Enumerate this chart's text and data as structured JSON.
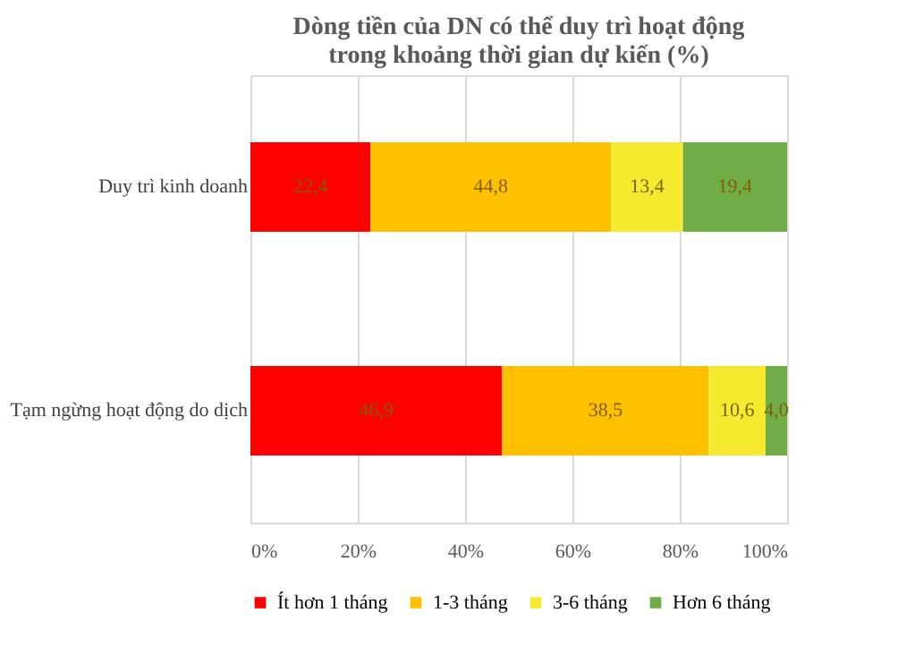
{
  "chart_data": {
    "type": "bar",
    "orientation": "horizontal",
    "stacked": true,
    "title": "Dòng tiền của DN có thể duy trì hoạt động\ntrong khoảng thời gian dự kiến (%)",
    "categories": [
      "Duy trì kinh doanh",
      "Tạm ngừng hoạt động do dịch"
    ],
    "series": [
      {
        "name": "Ít hơn 1 tháng",
        "color": "#ff0000",
        "values": [
          22.4,
          46.9
        ],
        "value_labels": [
          "22,4",
          "46,9"
        ]
      },
      {
        "name": "1-3 tháng",
        "color": "#ffc000",
        "values": [
          44.8,
          38.5
        ],
        "value_labels": [
          "44,8",
          "38,5"
        ]
      },
      {
        "name": "3-6 tháng",
        "color": "#f5ea2e",
        "values": [
          13.4,
          10.6
        ],
        "value_labels": [
          "13,4",
          "10,6"
        ]
      },
      {
        "name": "Hơn 6 tháng",
        "color": "#70ad47",
        "values": [
          19.4,
          4.0
        ],
        "value_labels": [
          "19,4",
          "4,0"
        ]
      }
    ],
    "xlim": [
      0,
      100
    ],
    "xticks": [
      {
        "value": 0,
        "label": "0%"
      },
      {
        "value": 20,
        "label": "20%"
      },
      {
        "value": 40,
        "label": "40%"
      },
      {
        "value": 60,
        "label": "60%"
      },
      {
        "value": 80,
        "label": "80%"
      },
      {
        "value": 100,
        "label": "100%"
      }
    ],
    "grid": "x",
    "legend": "bottom"
  }
}
